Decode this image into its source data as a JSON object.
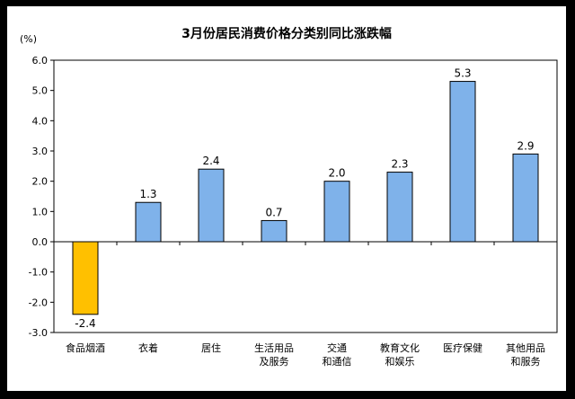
{
  "chart_data": {
    "type": "bar",
    "title": "3月份居民消费价格分类别同比涨跌幅",
    "unit_label": "(%)",
    "categories": [
      [
        "食品烟酒"
      ],
      [
        "衣着"
      ],
      [
        "居住"
      ],
      [
        "生活用品",
        "及服务"
      ],
      [
        "交通",
        "和通信"
      ],
      [
        "教育文化",
        "和娱乐"
      ],
      [
        "医疗保健"
      ],
      [
        "其他用品",
        "和服务"
      ]
    ],
    "values": [
      -2.4,
      1.3,
      2.4,
      0.7,
      2.0,
      2.3,
      5.3,
      2.9
    ],
    "value_labels": [
      "-2.4",
      "1.3",
      "2.4",
      "0.7",
      "2.0",
      "2.3",
      "5.3",
      "2.9"
    ],
    "ylim": [
      -3.0,
      6.0
    ],
    "yticks": [
      "6.0",
      "5.0",
      "4.0",
      "3.0",
      "2.0",
      "1.0",
      "0.0",
      "-1.0",
      "-2.0",
      "-3.0"
    ],
    "grid": false,
    "colors": {
      "positive": "#7fb2ea",
      "negative": "#ffc000",
      "bar_border": "#000000"
    }
  }
}
